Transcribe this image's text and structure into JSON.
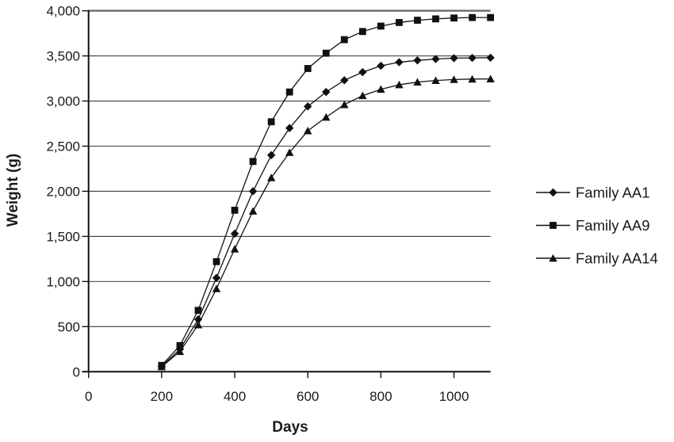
{
  "chart_data": {
    "type": "line",
    "title": "",
    "xlabel": "Days",
    "ylabel": "Weight (g)",
    "xlim": [
      0,
      1100
    ],
    "ylim": [
      0,
      4000
    ],
    "xticks": [
      0,
      200,
      400,
      600,
      800,
      1000
    ],
    "yticks": [
      0,
      500,
      1000,
      1500,
      2000,
      2500,
      3000,
      3500,
      4000
    ],
    "ytick_labels": [
      "0",
      "500",
      "1,000",
      "1,500",
      "2,000",
      "2,500",
      "3,000",
      "3,500",
      "4,000"
    ],
    "grid": "horizontal",
    "legend_position": "right-center",
    "line_color": "#111111",
    "x": [
      200,
      250,
      300,
      350,
      400,
      450,
      500,
      550,
      600,
      650,
      700,
      750,
      800,
      850,
      900,
      950,
      1000,
      1050,
      1100
    ],
    "series": [
      {
        "name": "Family AA1",
        "marker": "diamond",
        "values": [
          60,
          250,
          580,
          1040,
          1530,
          2000,
          2400,
          2700,
          2940,
          3100,
          3230,
          3320,
          3390,
          3430,
          3450,
          3465,
          3475,
          3478,
          3480
        ]
      },
      {
        "name": "Family AA9",
        "marker": "square",
        "values": [
          70,
          290,
          680,
          1220,
          1790,
          2330,
          2770,
          3100,
          3360,
          3530,
          3680,
          3770,
          3830,
          3870,
          3895,
          3910,
          3920,
          3925,
          3925
        ]
      },
      {
        "name": "Family AA14",
        "marker": "triangle",
        "values": [
          55,
          225,
          520,
          920,
          1360,
          1780,
          2150,
          2430,
          2670,
          2820,
          2960,
          3060,
          3130,
          3180,
          3210,
          3228,
          3238,
          3243,
          3245
        ]
      }
    ]
  }
}
